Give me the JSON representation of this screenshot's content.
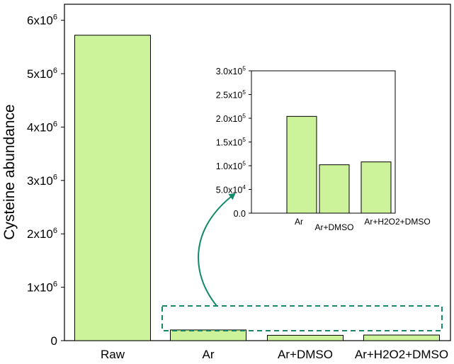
{
  "chart_data": [
    {
      "type": "bar",
      "categories": [
        "Raw",
        "Ar",
        "Ar+DMSO",
        "Ar+H2O2+DMSO"
      ],
      "values": [
        5720000,
        200000,
        100000,
        105000
      ],
      "ylabel": "Cysteine abundance",
      "xlabel": "",
      "ylim": [
        0,
        6300000
      ],
      "yticks": [
        0,
        1000000,
        2000000,
        3000000,
        4000000,
        5000000,
        6000000
      ],
      "ytick_labels": [
        {
          "base": "0",
          "exp": ""
        },
        {
          "base": "1x10",
          "exp": "6"
        },
        {
          "base": "2x10",
          "exp": "6"
        },
        {
          "base": "3x10",
          "exp": "6"
        },
        {
          "base": "4x10",
          "exp": "6"
        },
        {
          "base": "5x10",
          "exp": "6"
        },
        {
          "base": "6x10",
          "exp": "6"
        }
      ],
      "bar_color": "#ccf29a",
      "grid": false
    },
    {
      "type": "bar",
      "categories": [
        "Ar",
        "Ar+DMSO",
        "Ar+H2O2+DMSO"
      ],
      "values": [
        204000,
        102000,
        108000
      ],
      "ylim": [
        0,
        300000
      ],
      "yticks": [
        0,
        50000,
        100000,
        150000,
        200000,
        250000,
        300000
      ],
      "ytick_labels": [
        {
          "base": "0.0",
          "exp": ""
        },
        {
          "base": "5.0x10",
          "exp": "4"
        },
        {
          "base": "1.0x10",
          "exp": "5"
        },
        {
          "base": "1.5x10",
          "exp": "5"
        },
        {
          "base": "2.0x10",
          "exp": "5"
        },
        {
          "base": "2.5x10",
          "exp": "5"
        },
        {
          "base": "3.0x10",
          "exp": "5"
        }
      ],
      "bar_color": "#ccf29a",
      "grid": false,
      "annotation": "inset zoom of Ar, Ar+DMSO and Ar+H2O2+DMSO bars",
      "annotation_color": "#108a6a"
    }
  ]
}
